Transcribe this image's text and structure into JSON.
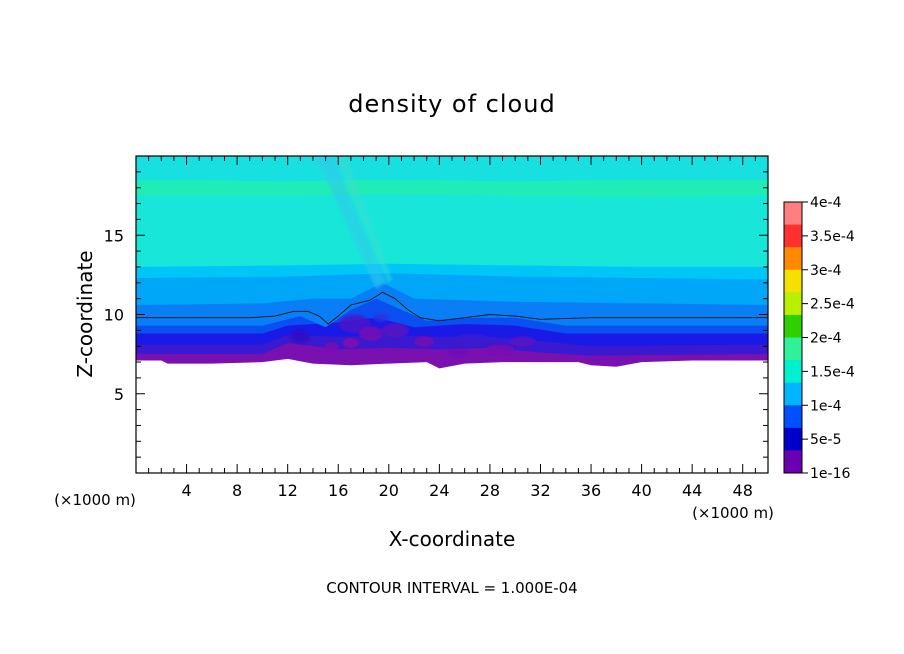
{
  "chart_data": {
    "type": "heatmap",
    "title": "density of cloud",
    "xlabel": "X-coordinate",
    "ylabel": "Z-coordinate",
    "x_unit_left": "(×1000 m)",
    "x_unit_right": "(×1000 m)",
    "footer": "CONTOUR INTERVAL = 1.000E-04",
    "xlim": [
      0,
      50
    ],
    "ylim": [
      0,
      20
    ],
    "x_ticks": [
      4,
      8,
      12,
      16,
      20,
      24,
      28,
      32,
      36,
      40,
      44,
      48
    ],
    "x_tick_labels": [
      "4",
      "8",
      "12",
      "16",
      "20",
      "24",
      "28",
      "32",
      "36",
      "40",
      "44",
      "48"
    ],
    "y_ticks": [
      5,
      10,
      15
    ],
    "y_tick_labels": [
      "5",
      "10",
      "15"
    ],
    "colorbar": {
      "labels": [
        "4e-4",
        "3.5e-4",
        "3e-4",
        "2.5e-4",
        "2e-4",
        "1.5e-4",
        "1e-4",
        "5e-5",
        "1e-16"
      ],
      "colors": [
        "#ff7f7f",
        "#ff3030",
        "#ff8a00",
        "#f5e000",
        "#b8f000",
        "#30d000",
        "#30f09a",
        "#00f0d0",
        "#00b4ff",
        "#0050ff",
        "#0000c8",
        "#6a00b0"
      ]
    },
    "layers": [
      {
        "level": "1e-16",
        "color": "#7a10b0",
        "profile": [
          [
            0,
            7.1
          ],
          [
            2,
            7.1
          ],
          [
            2.5,
            6.9
          ],
          [
            6,
            6.9
          ],
          [
            10,
            7.0
          ],
          [
            12,
            7.2
          ],
          [
            14,
            6.9
          ],
          [
            17,
            6.8
          ],
          [
            20,
            6.9
          ],
          [
            23,
            7.0
          ],
          [
            24,
            6.6
          ],
          [
            26,
            6.9
          ],
          [
            29,
            7.0
          ],
          [
            32,
            7.0
          ],
          [
            35,
            7.0
          ],
          [
            36,
            6.8
          ],
          [
            38,
            6.7
          ],
          [
            40,
            7.0
          ],
          [
            44,
            7.1
          ],
          [
            50,
            7.1
          ]
        ]
      },
      {
        "level": "1e-5",
        "color": "#3a1ad0",
        "profile": [
          [
            0,
            7.5
          ],
          [
            10,
            7.5
          ],
          [
            12,
            8.2
          ],
          [
            16,
            7.8
          ],
          [
            20,
            7.9
          ],
          [
            24,
            7.8
          ],
          [
            28,
            7.9
          ],
          [
            32,
            7.6
          ],
          [
            36,
            7.4
          ],
          [
            50,
            7.5
          ]
        ]
      },
      {
        "level": "3e-5",
        "color": "#1a1ae6",
        "profile": [
          [
            0,
            8.1
          ],
          [
            10,
            8.1
          ],
          [
            12,
            8.7
          ],
          [
            16,
            8.6
          ],
          [
            20,
            8.7
          ],
          [
            24,
            8.6
          ],
          [
            28,
            8.6
          ],
          [
            32,
            8.3
          ],
          [
            36,
            8.0
          ],
          [
            50,
            8.1
          ]
        ]
      },
      {
        "level": "5e-5",
        "color": "#0a50f0",
        "profile": [
          [
            0,
            8.8
          ],
          [
            10,
            8.8
          ],
          [
            12,
            9.3
          ],
          [
            16,
            9.5
          ],
          [
            19,
            9.8
          ],
          [
            22,
            9.2
          ],
          [
            26,
            9.4
          ],
          [
            30,
            9.3
          ],
          [
            34,
            8.8
          ],
          [
            50,
            8.8
          ]
        ]
      },
      {
        "level": "7e-5",
        "color": "#0a7ff5",
        "profile": [
          [
            0,
            9.3
          ],
          [
            10,
            9.3
          ],
          [
            13,
            9.9
          ],
          [
            15,
            9.2
          ],
          [
            17,
            10.3
          ],
          [
            19,
            11.0
          ],
          [
            21,
            10.3
          ],
          [
            23,
            9.6
          ],
          [
            26,
            9.8
          ],
          [
            30,
            9.8
          ],
          [
            34,
            9.3
          ],
          [
            50,
            9.3
          ]
        ]
      },
      {
        "level": "1e-4",
        "color": "#00a6f8",
        "profile": [
          [
            0,
            10.6
          ],
          [
            10,
            10.7
          ],
          [
            14,
            11.0
          ],
          [
            17,
            11.0
          ],
          [
            19.5,
            12.0
          ],
          [
            22,
            11.0
          ],
          [
            30,
            10.8
          ],
          [
            40,
            10.7
          ],
          [
            50,
            10.6
          ]
        ]
      },
      {
        "level": "1.2e-4",
        "color": "#00c6f8",
        "profile": [
          [
            0,
            12.3
          ],
          [
            12,
            12.4
          ],
          [
            20,
            12.6
          ],
          [
            30,
            12.4
          ],
          [
            40,
            12.3
          ],
          [
            50,
            12.2
          ]
        ]
      },
      {
        "level": "1.5e-4",
        "color": "#18e6d8",
        "profile": [
          [
            0,
            13.0
          ],
          [
            12,
            13.1
          ],
          [
            20,
            13.2
          ],
          [
            30,
            13.1
          ],
          [
            40,
            13.0
          ],
          [
            50,
            13.0
          ]
        ]
      },
      {
        "level": "1.6e-4",
        "color": "#20ecb8",
        "profile": [
          [
            0,
            17.5
          ],
          [
            12,
            17.5
          ],
          [
            20,
            17.6
          ],
          [
            30,
            17.5
          ],
          [
            40,
            17.4
          ],
          [
            50,
            17.5
          ]
        ]
      },
      {
        "level": "1.3e-4",
        "color": "#18e0e0",
        "profile": [
          [
            0,
            18.5
          ],
          [
            12,
            18.4
          ],
          [
            20,
            18.5
          ],
          [
            30,
            18.4
          ],
          [
            40,
            18.5
          ],
          [
            50,
            18.5
          ]
        ]
      },
      {
        "level": "1.1e-4",
        "color": "#10d0f0",
        "profile": [
          [
            0,
            20
          ],
          [
            50,
            20
          ]
        ]
      }
    ],
    "contour_line": [
      [
        0,
        9.8
      ],
      [
        6,
        9.8
      ],
      [
        9,
        9.8
      ],
      [
        11,
        9.9
      ],
      [
        12.5,
        10.2
      ],
      [
        13.6,
        10.2
      ],
      [
        14.5,
        9.9
      ],
      [
        15.2,
        9.4
      ],
      [
        16,
        9.9
      ],
      [
        17,
        10.6
      ],
      [
        18.5,
        10.9
      ],
      [
        19.5,
        11.4
      ],
      [
        20.5,
        11.0
      ],
      [
        21.5,
        10.3
      ],
      [
        22.5,
        9.8
      ],
      [
        24,
        9.6
      ],
      [
        26,
        9.8
      ],
      [
        28,
        10.0
      ],
      [
        30,
        9.9
      ],
      [
        32,
        9.7
      ],
      [
        36,
        9.8
      ],
      [
        40,
        9.8
      ],
      [
        44,
        9.8
      ],
      [
        50,
        9.8
      ]
    ]
  }
}
